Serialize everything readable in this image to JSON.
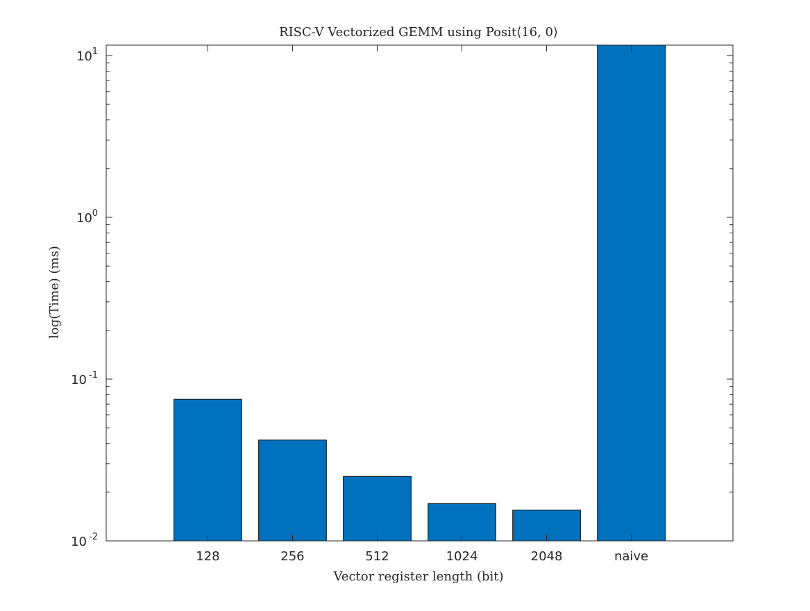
{
  "chart_data": {
    "type": "bar",
    "title": "RISC-V Vectorized GEMM using Posit⟨16, 0⟩",
    "xlabel": "Vector register length (bit)",
    "ylabel": "log(Time) (ms)",
    "categories": [
      "128",
      "256",
      "512",
      "1024",
      "2048",
      "naive"
    ],
    "values": [
      0.075,
      0.042,
      0.025,
      0.017,
      0.0155,
      11.6
    ],
    "yscale": "log",
    "ylim": [
      0.01,
      11.6
    ],
    "yticks": [
      {
        "value": 0.01,
        "base": "10",
        "exp": "-2"
      },
      {
        "value": 0.1,
        "base": "10",
        "exp": "-1"
      },
      {
        "value": 1,
        "base": "10",
        "exp": "0"
      },
      {
        "value": 10,
        "base": "10",
        "exp": "1"
      }
    ],
    "grid": false,
    "legend": "none",
    "colors": {
      "bar": "#0072BD",
      "bar_edge": "#000000",
      "axes": "#262626",
      "text": "#262626",
      "background": "#ffffff"
    }
  }
}
